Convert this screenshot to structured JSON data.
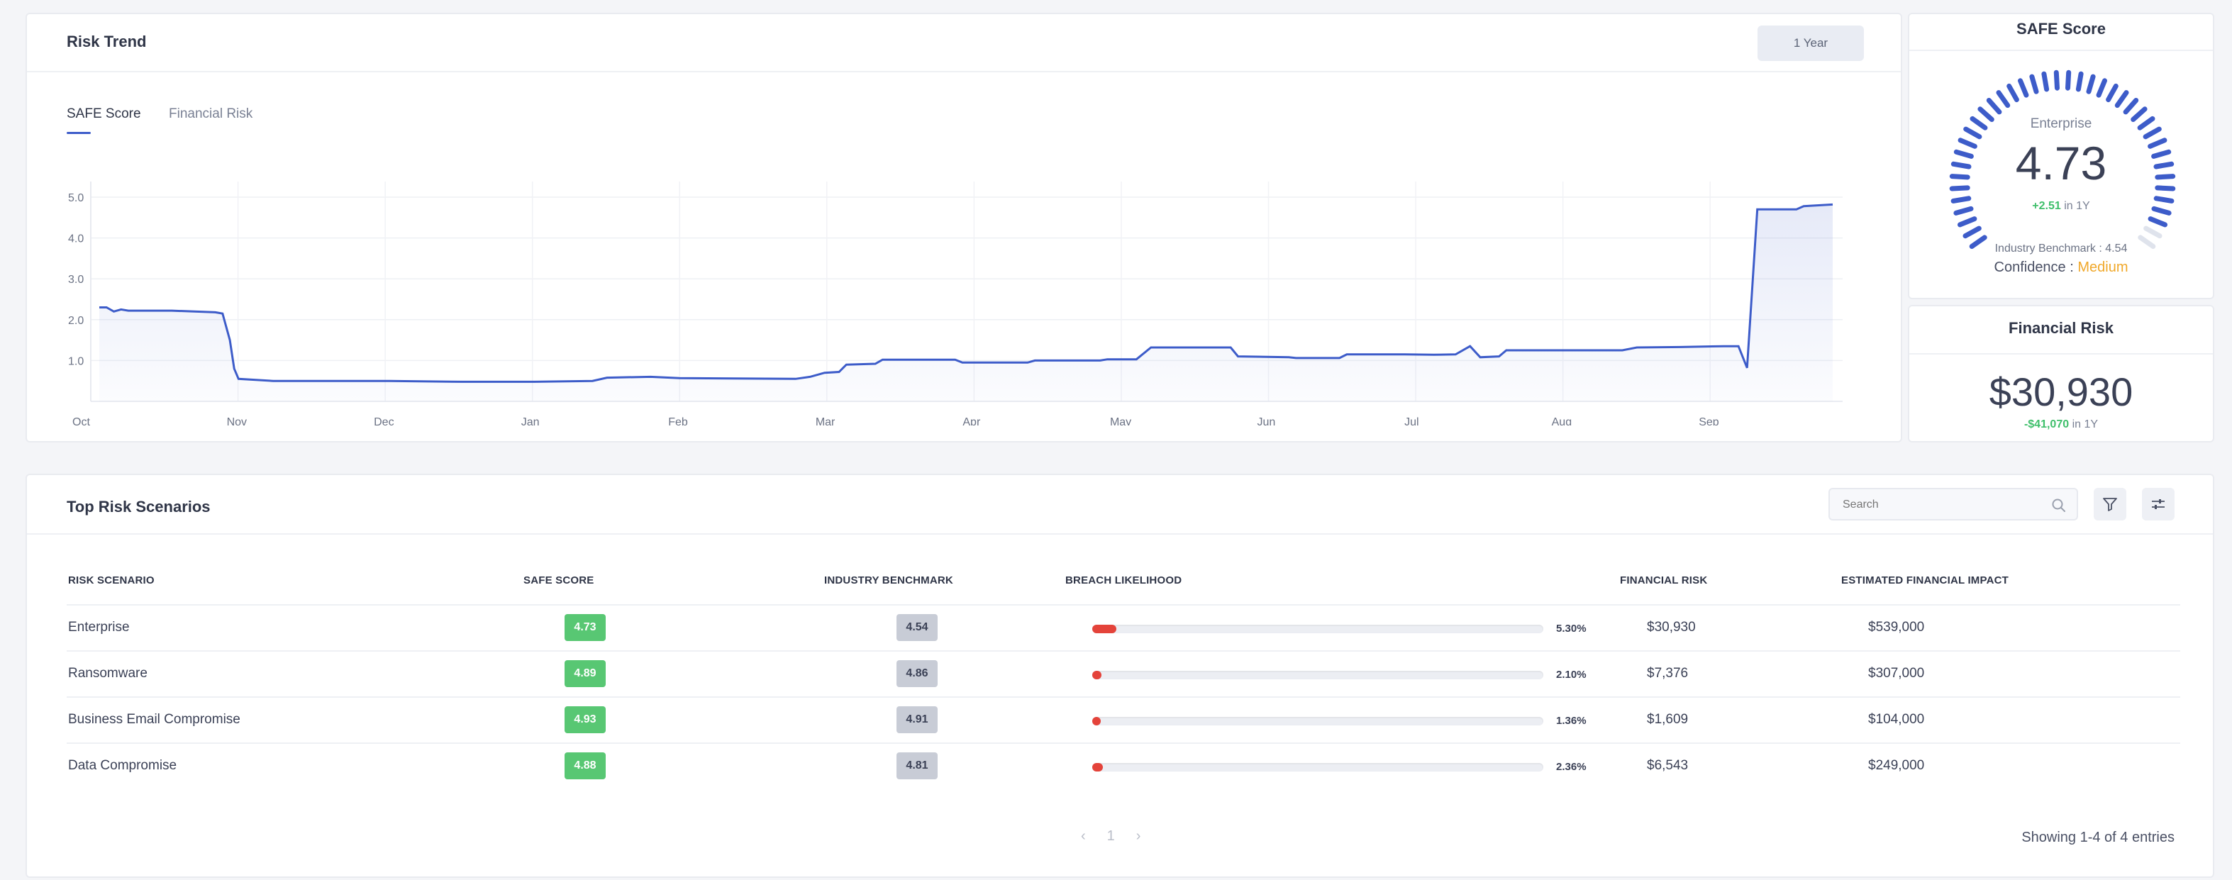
{
  "trend": {
    "title": "Risk Trend",
    "range_button": "1 Year",
    "tabs": [
      "SAFE Score",
      "Financial Risk"
    ]
  },
  "chart_data": {
    "type": "area",
    "title": "",
    "xlabel": "",
    "ylabel": "",
    "x_ticks": [
      "Oct",
      "Nov",
      "Dec",
      "Jan",
      "Feb",
      "Mar",
      "Apr",
      "May",
      "Jun",
      "Jul",
      "Aug",
      "Sep"
    ],
    "y_ticks": [
      "1.0",
      "2.0",
      "3.0",
      "4.0",
      "5.0"
    ],
    "ylim": [
      0,
      5
    ],
    "color": "#3d5cc9",
    "series": [
      {
        "points": [
          [
            0,
            2.3
          ],
          [
            0.05,
            2.3
          ],
          [
            0.1,
            2.2
          ],
          [
            0.15,
            2.25
          ],
          [
            0.2,
            2.22
          ],
          [
            0.5,
            2.22
          ],
          [
            0.8,
            2.18
          ],
          [
            0.85,
            2.15
          ],
          [
            0.9,
            1.5
          ],
          [
            0.93,
            0.8
          ],
          [
            0.96,
            0.55
          ],
          [
            1.2,
            0.5
          ],
          [
            2.0,
            0.5
          ],
          [
            2.5,
            0.48
          ],
          [
            3.0,
            0.48
          ],
          [
            3.4,
            0.5
          ],
          [
            3.5,
            0.58
          ],
          [
            3.8,
            0.6
          ],
          [
            4.0,
            0.57
          ],
          [
            4.8,
            0.55
          ],
          [
            4.9,
            0.6
          ],
          [
            5.0,
            0.7
          ],
          [
            5.1,
            0.72
          ],
          [
            5.15,
            0.9
          ],
          [
            5.35,
            0.92
          ],
          [
            5.4,
            1.02
          ],
          [
            5.9,
            1.02
          ],
          [
            5.95,
            0.95
          ],
          [
            6.4,
            0.95
          ],
          [
            6.45,
            1.0
          ],
          [
            6.9,
            1.0
          ],
          [
            6.95,
            1.03
          ],
          [
            7.15,
            1.03
          ],
          [
            7.25,
            1.32
          ],
          [
            7.8,
            1.32
          ],
          [
            7.85,
            1.1
          ],
          [
            8.2,
            1.08
          ],
          [
            8.25,
            1.06
          ],
          [
            8.55,
            1.06
          ],
          [
            8.6,
            1.15
          ],
          [
            9.0,
            1.15
          ],
          [
            9.2,
            1.14
          ],
          [
            9.35,
            1.15
          ],
          [
            9.45,
            1.35
          ],
          [
            9.52,
            1.08
          ],
          [
            9.65,
            1.1
          ],
          [
            9.7,
            1.25
          ],
          [
            10.5,
            1.25
          ],
          [
            10.6,
            1.32
          ],
          [
            10.9,
            1.33
          ],
          [
            11.2,
            1.35
          ],
          [
            11.3,
            1.35
          ],
          [
            11.36,
            0.82
          ],
          [
            11.43,
            4.7
          ],
          [
            11.7,
            4.7
          ],
          [
            11.75,
            4.78
          ],
          [
            11.95,
            4.82
          ]
        ]
      }
    ]
  },
  "safe_score": {
    "title": "SAFE Score",
    "label": "Enterprise",
    "score": "4.73",
    "gauge_fraction": 0.946,
    "delta_value": "+2.51",
    "delta_suffix": " in 1Y",
    "benchmark": "Industry Benchmark : 4.54",
    "confidence_label": "Confidence : ",
    "confidence_value": "Medium",
    "gauge_color": "#3d5cc9",
    "confidence_color": "#f0a82a"
  },
  "financial_risk": {
    "title": "Financial Risk",
    "value": "$30,930",
    "delta_value": "-$41,070",
    "delta_suffix": " in 1Y"
  },
  "table": {
    "title": "Top Risk Scenarios",
    "search_placeholder": "Search",
    "columns": [
      "RISK SCENARIO",
      "SAFE SCORE",
      "INDUSTRY BENCHMARK",
      "BREACH LIKELIHOOD",
      "FINANCIAL RISK",
      "ESTIMATED FINANCIAL IMPACT"
    ],
    "rows": [
      {
        "scenario": "Enterprise",
        "safe": "4.73",
        "bench": "4.54",
        "likelihood": "5.30%",
        "likelihood_value": 5.3,
        "fin": "$30,930",
        "impact": "$539,000"
      },
      {
        "scenario": "Ransomware",
        "safe": "4.89",
        "bench": "4.86",
        "likelihood": "2.10%",
        "likelihood_value": 2.1,
        "fin": "$7,376",
        "impact": "$307,000"
      },
      {
        "scenario": "Business Email Compromise",
        "safe": "4.93",
        "bench": "4.91",
        "likelihood": "1.36%",
        "likelihood_value": 1.36,
        "fin": "$1,609",
        "impact": "$104,000"
      },
      {
        "scenario": "Data Compromise",
        "safe": "4.88",
        "bench": "4.81",
        "likelihood": "2.36%",
        "likelihood_value": 2.36,
        "fin": "$6,543",
        "impact": "$249,000"
      }
    ],
    "pager": {
      "prev": "‹",
      "page": "1",
      "next": "›"
    },
    "entries_text": "Showing 1-4 of 4 entries"
  }
}
